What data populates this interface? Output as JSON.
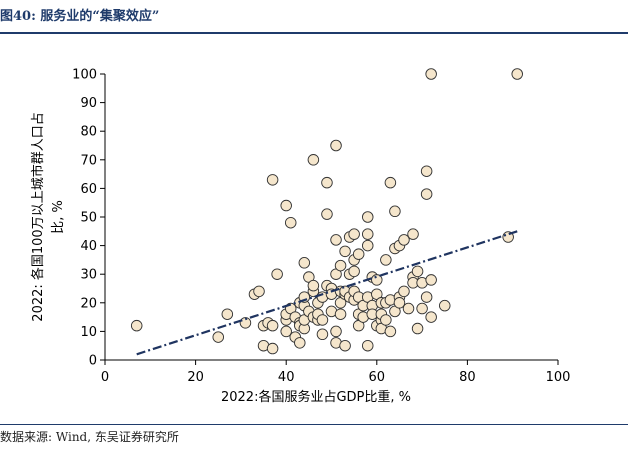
{
  "header": {
    "title": "图40: 服务业的“集聚效应”"
  },
  "footer": {
    "source": "数据来源: Wind, 东吴证券研究所"
  },
  "chart_data": {
    "type": "scatter",
    "title": "图40: 服务业的“集聚效应”",
    "xlabel": "2022:各国服务业占GDP比重, %",
    "ylabel_line1": "2022: 各国100万以上城市群人口占",
    "ylabel_line2": "比, %",
    "xlim": [
      0,
      100
    ],
    "ylim": [
      0,
      100
    ],
    "xticks": [
      0,
      20,
      40,
      60,
      80,
      100
    ],
    "yticks": [
      0,
      10,
      20,
      30,
      40,
      50,
      60,
      70,
      80,
      90,
      100
    ],
    "grid": false,
    "legend": "none",
    "trendline": {
      "x": [
        7,
        91
      ],
      "y": [
        2,
        45
      ],
      "style": "dash-dot",
      "color": "#1f3460"
    },
    "colors": {
      "marker_fill": "#f5e6cc",
      "marker_stroke": "#333333",
      "trend": "#1f3460",
      "title": "#1f3b6b"
    },
    "points": [
      [
        7,
        12
      ],
      [
        25,
        8
      ],
      [
        27,
        16
      ],
      [
        31,
        13
      ],
      [
        33,
        23
      ],
      [
        34,
        24
      ],
      [
        35,
        5
      ],
      [
        35,
        12
      ],
      [
        36,
        13
      ],
      [
        37,
        4
      ],
      [
        37,
        12
      ],
      [
        37,
        63
      ],
      [
        38,
        30
      ],
      [
        40,
        10
      ],
      [
        40,
        14
      ],
      [
        40,
        16
      ],
      [
        40,
        54
      ],
      [
        41,
        48
      ],
      [
        41,
        18
      ],
      [
        42,
        8
      ],
      [
        42,
        15
      ],
      [
        43,
        6
      ],
      [
        43,
        13
      ],
      [
        43,
        12
      ],
      [
        43,
        20
      ],
      [
        44,
        19
      ],
      [
        44,
        34
      ],
      [
        44,
        22
      ],
      [
        44,
        11
      ],
      [
        44,
        14
      ],
      [
        45,
        17
      ],
      [
        45,
        29
      ],
      [
        46,
        70
      ],
      [
        46,
        15
      ],
      [
        46,
        24
      ],
      [
        46,
        26
      ],
      [
        47,
        20
      ],
      [
        47,
        14
      ],
      [
        47,
        16
      ],
      [
        48,
        9
      ],
      [
        48,
        14
      ],
      [
        48,
        22
      ],
      [
        49,
        51
      ],
      [
        49,
        26
      ],
      [
        49,
        62
      ],
      [
        50,
        25
      ],
      [
        50,
        17
      ],
      [
        50,
        23
      ],
      [
        51,
        42
      ],
      [
        51,
        75
      ],
      [
        51,
        10
      ],
      [
        51,
        6
      ],
      [
        51,
        30
      ],
      [
        52,
        33
      ],
      [
        52,
        16
      ],
      [
        52,
        20
      ],
      [
        52,
        24
      ],
      [
        53,
        5
      ],
      [
        53,
        23
      ],
      [
        53,
        38
      ],
      [
        53,
        24
      ],
      [
        54,
        30
      ],
      [
        54,
        22
      ],
      [
        54,
        43
      ],
      [
        55,
        21
      ],
      [
        55,
        31
      ],
      [
        55,
        35
      ],
      [
        55,
        44
      ],
      [
        55,
        24
      ],
      [
        56,
        22
      ],
      [
        56,
        12
      ],
      [
        56,
        16
      ],
      [
        56,
        37
      ],
      [
        57,
        19
      ],
      [
        57,
        15
      ],
      [
        58,
        50
      ],
      [
        58,
        40
      ],
      [
        58,
        44
      ],
      [
        58,
        5
      ],
      [
        58,
        22
      ],
      [
        59,
        29
      ],
      [
        59,
        19
      ],
      [
        59,
        16
      ],
      [
        60,
        28
      ],
      [
        60,
        23
      ],
      [
        60,
        12
      ],
      [
        61,
        14
      ],
      [
        61,
        20
      ],
      [
        61,
        16
      ],
      [
        61,
        11
      ],
      [
        62,
        35
      ],
      [
        62,
        20
      ],
      [
        62,
        14
      ],
      [
        63,
        62
      ],
      [
        63,
        21
      ],
      [
        63,
        10
      ],
      [
        64,
        52
      ],
      [
        64,
        39
      ],
      [
        64,
        17
      ],
      [
        65,
        40
      ],
      [
        65,
        22
      ],
      [
        65,
        20
      ],
      [
        66,
        42
      ],
      [
        66,
        24
      ],
      [
        67,
        18
      ],
      [
        68,
        44
      ],
      [
        68,
        29
      ],
      [
        68,
        27
      ],
      [
        69,
        31
      ],
      [
        69,
        11
      ],
      [
        70,
        18
      ],
      [
        70,
        27
      ],
      [
        71,
        58
      ],
      [
        71,
        66
      ],
      [
        71,
        22
      ],
      [
        72,
        100
      ],
      [
        72,
        28
      ],
      [
        72,
        15
      ],
      [
        75,
        19
      ],
      [
        89,
        43
      ],
      [
        91,
        100
      ]
    ]
  }
}
